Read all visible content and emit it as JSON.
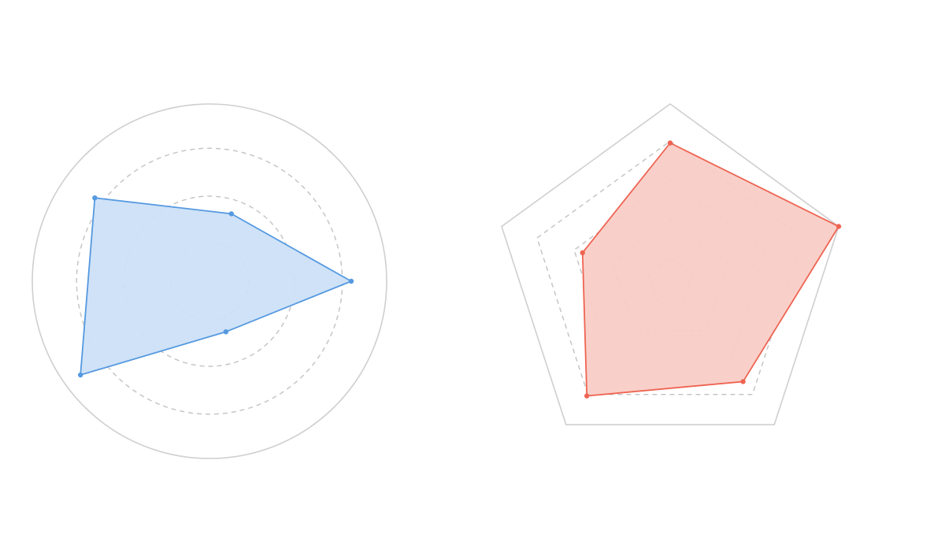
{
  "chart_data": [
    {
      "type": "radar",
      "grid_shape": "circle",
      "grid_levels": 4,
      "axes_count": 5,
      "rmax": 100,
      "series": [
        {
          "values": [
            80,
            30,
            90,
            80,
            40
          ]
        }
      ],
      "colors": {
        "stroke": "#5599e0",
        "fill": "#cce0f7",
        "grid_outer": "#cfcfcf",
        "grid_inner": "#c6c6c6"
      }
    },
    {
      "type": "radar",
      "grid_shape": "polygon",
      "grid_levels": 5,
      "axes_count": 5,
      "rmax": 100,
      "series": [
        {
          "values": [
            78,
            100,
            70,
            80,
            52
          ]
        }
      ],
      "colors": {
        "stroke": "#ee6452",
        "fill": "#f9cdc6",
        "grid_outer": "#cfcfcf",
        "grid_inner": "#c6c6c6"
      }
    }
  ]
}
